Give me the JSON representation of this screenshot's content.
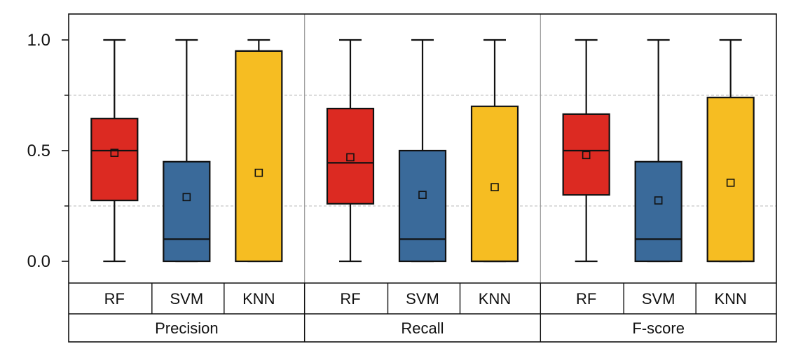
{
  "chart_data": {
    "type": "box",
    "y_ticks": [
      "0.0",
      "0.5",
      "1.0"
    ],
    "y_tick_values": [
      0,
      0.5,
      1.0
    ],
    "y_minor_ticks": [
      0.25,
      0.75
    ],
    "ylim": [
      -0.1,
      1.1
    ],
    "grid": "dashed horizontal lines at 0.25 and 0.75",
    "colors": {
      "RF": "#dc2a22",
      "SVM": "#3a6a9a",
      "KNN": "#f6bd22"
    },
    "panels": [
      {
        "label": "Precision",
        "boxes": [
          {
            "category": "RF",
            "min": 0.0,
            "q1": 0.275,
            "median": 0.5,
            "q3": 0.645,
            "max": 1.0,
            "mean": 0.49
          },
          {
            "category": "SVM",
            "min": 0.0,
            "q1": 0.0,
            "median": 0.1,
            "q3": 0.45,
            "max": 1.0,
            "mean": 0.29
          },
          {
            "category": "KNN",
            "min": 0.0,
            "q1": 0.0,
            "median": 0.95,
            "q3": 0.95,
            "max": 1.0,
            "mean": 0.4
          }
        ]
      },
      {
        "label": "Recall",
        "boxes": [
          {
            "category": "RF",
            "min": 0.0,
            "q1": 0.26,
            "median": 0.445,
            "q3": 0.69,
            "max": 1.0,
            "mean": 0.47
          },
          {
            "category": "SVM",
            "min": 0.0,
            "q1": 0.0,
            "median": 0.1,
            "q3": 0.5,
            "max": 1.0,
            "mean": 0.3
          },
          {
            "category": "KNN",
            "min": 0.0,
            "q1": 0.0,
            "median": 0.0,
            "q3": 0.7,
            "max": 1.0,
            "mean": 0.335
          }
        ]
      },
      {
        "label": "F-score",
        "boxes": [
          {
            "category": "RF",
            "min": 0.0,
            "q1": 0.3,
            "median": 0.5,
            "q3": 0.665,
            "max": 1.0,
            "mean": 0.48
          },
          {
            "category": "SVM",
            "min": 0.0,
            "q1": 0.0,
            "median": 0.1,
            "q3": 0.45,
            "max": 1.0,
            "mean": 0.275
          },
          {
            "category": "KNN",
            "min": 0.0,
            "q1": 0.0,
            "median": 0.0,
            "q3": 0.74,
            "max": 1.0,
            "mean": 0.355
          }
        ]
      }
    ]
  }
}
